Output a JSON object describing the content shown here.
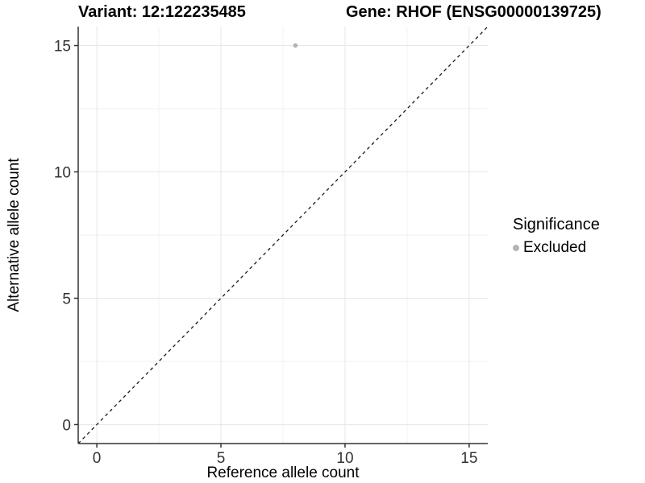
{
  "chart_data": {
    "type": "scatter",
    "title_left": "Variant: 12:122235485",
    "title_right": "Gene: RHOF (ENSG00000139725)",
    "xlabel": "Reference allele count",
    "ylabel": "Alternative allele count",
    "xlim": [
      -0.75,
      15.75
    ],
    "ylim": [
      -0.75,
      15.75
    ],
    "x_major_ticks": [
      0,
      5,
      10,
      15
    ],
    "y_major_ticks": [
      0,
      5,
      10,
      15
    ],
    "x_minor_gridlines": [
      2.5,
      7.5,
      12.5
    ],
    "y_minor_gridlines": [
      2.5,
      7.5,
      12.5
    ],
    "grid": "major+minor",
    "series": [
      {
        "name": "Excluded",
        "color": "#b4b4b4",
        "points": [
          {
            "x": 8,
            "y": 15
          }
        ]
      }
    ],
    "identity_line": {
      "equation": "y = x",
      "style": "dashed",
      "color": "#1a1a1a"
    },
    "legend": {
      "title": "Significance",
      "position": "right",
      "entries": [
        {
          "label": "Excluded",
          "color": "#b4b4b4"
        }
      ]
    },
    "colors": {
      "grid_major": "#e7e7e7",
      "grid_minor": "#f2f2f2",
      "axis_line": "#333333",
      "tick_label": "#333333",
      "title_text": "#000000"
    }
  }
}
